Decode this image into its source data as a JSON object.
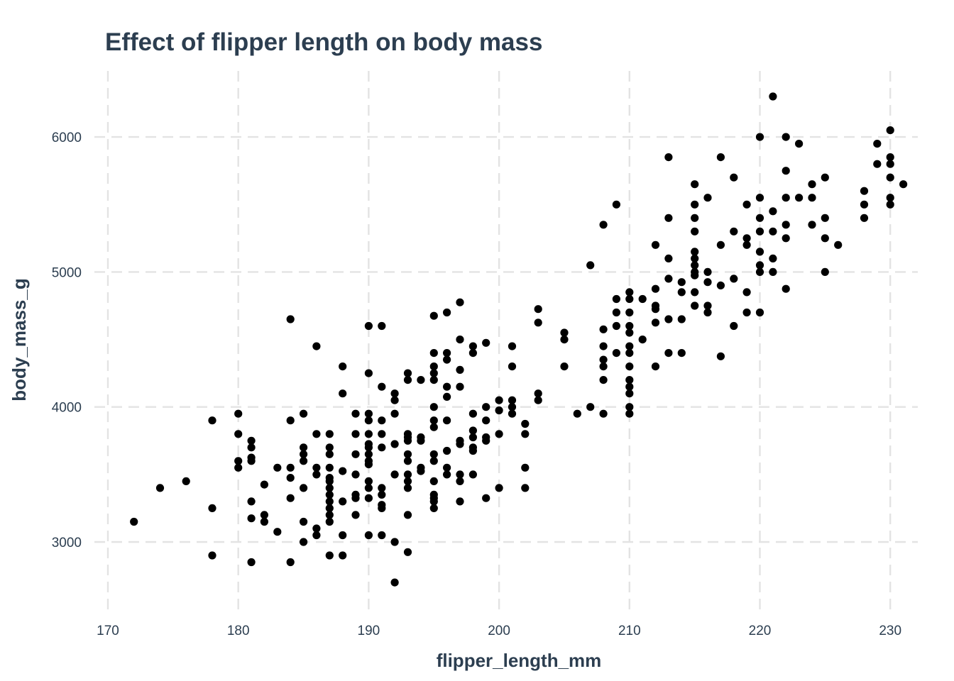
{
  "chart_data": {
    "type": "scatter",
    "title": "Effect of flipper length on body mass",
    "xlabel": "flipper_length_mm",
    "ylabel": "body_mass_g",
    "xlim": [
      169,
      232
    ],
    "ylim": [
      2550,
      6550
    ],
    "x_ticks": [
      170,
      180,
      190,
      200,
      210,
      220,
      230
    ],
    "y_ticks": [
      3000,
      4000,
      5000,
      6000
    ],
    "grid": true,
    "grid_style": "dashed",
    "legend": "none",
    "colors": {
      "point": "#000000",
      "text": "#2c3e50",
      "tick_text": "#2c3e50",
      "grid": "#e3e3e3"
    },
    "points": [
      [
        172,
        3150
      ],
      [
        174,
        3400
      ],
      [
        176,
        3450
      ],
      [
        178,
        3900
      ],
      [
        178,
        3250
      ],
      [
        178,
        2900
      ],
      [
        180,
        3950
      ],
      [
        180,
        3800
      ],
      [
        180,
        3600
      ],
      [
        180,
        3550
      ],
      [
        181,
        3750
      ],
      [
        181,
        3700
      ],
      [
        181,
        3625
      ],
      [
        181,
        3600
      ],
      [
        181,
        3300
      ],
      [
        181,
        3175
      ],
      [
        181,
        2850
      ],
      [
        182,
        3425
      ],
      [
        182,
        3200
      ],
      [
        182,
        3150
      ],
      [
        183,
        3550
      ],
      [
        183,
        3075
      ],
      [
        184,
        4650
      ],
      [
        184,
        3900
      ],
      [
        184,
        3550
      ],
      [
        184,
        3475
      ],
      [
        184,
        3325
      ],
      [
        184,
        2850
      ],
      [
        185,
        3950
      ],
      [
        185,
        3700
      ],
      [
        185,
        3650
      ],
      [
        185,
        3600
      ],
      [
        185,
        3400
      ],
      [
        185,
        3150
      ],
      [
        185,
        3000
      ],
      [
        186,
        4450
      ],
      [
        186,
        3800
      ],
      [
        186,
        3550
      ],
      [
        186,
        3500
      ],
      [
        186,
        3100
      ],
      [
        186,
        3050
      ],
      [
        187,
        3800
      ],
      [
        187,
        3700
      ],
      [
        187,
        3650
      ],
      [
        187,
        3550
      ],
      [
        187,
        3475
      ],
      [
        187,
        3450
      ],
      [
        187,
        3400
      ],
      [
        187,
        3350
      ],
      [
        187,
        3300
      ],
      [
        187,
        3250
      ],
      [
        187,
        3200
      ],
      [
        187,
        3150
      ],
      [
        187,
        2900
      ],
      [
        188,
        4300
      ],
      [
        188,
        4100
      ],
      [
        188,
        3525
      ],
      [
        188,
        3300
      ],
      [
        188,
        3050
      ],
      [
        188,
        2900
      ],
      [
        189,
        3950
      ],
      [
        189,
        3800
      ],
      [
        189,
        3650
      ],
      [
        189,
        3500
      ],
      [
        189,
        3350
      ],
      [
        189,
        3325
      ],
      [
        189,
        3200
      ],
      [
        190,
        4600
      ],
      [
        190,
        4250
      ],
      [
        190,
        3950
      ],
      [
        190,
        3900
      ],
      [
        190,
        3800
      ],
      [
        190,
        3725
      ],
      [
        190,
        3700
      ],
      [
        190,
        3650
      ],
      [
        190,
        3600
      ],
      [
        190,
        3575
      ],
      [
        190,
        3450
      ],
      [
        190,
        3400
      ],
      [
        190,
        3325
      ],
      [
        190,
        3050
      ],
      [
        191,
        4600
      ],
      [
        191,
        4150
      ],
      [
        191,
        3900
      ],
      [
        191,
        3800
      ],
      [
        191,
        3700
      ],
      [
        191,
        3400
      ],
      [
        191,
        3350
      ],
      [
        191,
        3275
      ],
      [
        191,
        3250
      ],
      [
        191,
        3050
      ],
      [
        192,
        4100
      ],
      [
        192,
        4050
      ],
      [
        192,
        3950
      ],
      [
        192,
        3725
      ],
      [
        192,
        3500
      ],
      [
        192,
        3000
      ],
      [
        192,
        2700
      ],
      [
        193,
        4250
      ],
      [
        193,
        4200
      ],
      [
        193,
        3800
      ],
      [
        193,
        3775
      ],
      [
        193,
        3750
      ],
      [
        193,
        3650
      ],
      [
        193,
        3600
      ],
      [
        193,
        3500
      ],
      [
        193,
        3450
      ],
      [
        193,
        3400
      ],
      [
        193,
        3200
      ],
      [
        193,
        2925
      ],
      [
        194,
        4200
      ],
      [
        194,
        3775
      ],
      [
        194,
        3750
      ],
      [
        194,
        3550
      ],
      [
        194,
        3525
      ],
      [
        195,
        4675
      ],
      [
        195,
        4400
      ],
      [
        195,
        4300
      ],
      [
        195,
        4250
      ],
      [
        195,
        4200
      ],
      [
        195,
        4000
      ],
      [
        195,
        3900
      ],
      [
        195,
        3850
      ],
      [
        195,
        3650
      ],
      [
        195,
        3600
      ],
      [
        195,
        3450
      ],
      [
        195,
        3350
      ],
      [
        195,
        3325
      ],
      [
        195,
        3300
      ],
      [
        195,
        3250
      ],
      [
        196,
        4700
      ],
      [
        196,
        4400
      ],
      [
        196,
        4350
      ],
      [
        196,
        4150
      ],
      [
        196,
        4075
      ],
      [
        196,
        3900
      ],
      [
        196,
        3675
      ],
      [
        196,
        3550
      ],
      [
        196,
        3500
      ],
      [
        197,
        4775
      ],
      [
        197,
        4500
      ],
      [
        197,
        4275
      ],
      [
        197,
        4150
      ],
      [
        197,
        3750
      ],
      [
        197,
        3725
      ],
      [
        197,
        3500
      ],
      [
        197,
        3450
      ],
      [
        197,
        3300
      ],
      [
        198,
        4450
      ],
      [
        198,
        4400
      ],
      [
        198,
        3950
      ],
      [
        198,
        3825
      ],
      [
        198,
        3775
      ],
      [
        198,
        3700
      ],
      [
        198,
        3675
      ],
      [
        198,
        3500
      ],
      [
        199,
        4475
      ],
      [
        199,
        4000
      ],
      [
        199,
        3900
      ],
      [
        199,
        3775
      ],
      [
        199,
        3750
      ],
      [
        199,
        3325
      ],
      [
        200,
        4050
      ],
      [
        200,
        3975
      ],
      [
        200,
        3800
      ],
      [
        200,
        3400
      ],
      [
        201,
        4450
      ],
      [
        201,
        4300
      ],
      [
        201,
        4050
      ],
      [
        201,
        4000
      ],
      [
        201,
        3950
      ],
      [
        202,
        3875
      ],
      [
        202,
        3800
      ],
      [
        202,
        3550
      ],
      [
        202,
        3400
      ],
      [
        203,
        4725
      ],
      [
        203,
        4625
      ],
      [
        203,
        4100
      ],
      [
        203,
        4050
      ],
      [
        205,
        4550
      ],
      [
        205,
        4500
      ],
      [
        205,
        4300
      ],
      [
        206,
        3950
      ],
      [
        207,
        5050
      ],
      [
        207,
        4000
      ],
      [
        208,
        5350
      ],
      [
        208,
        4575
      ],
      [
        208,
        4450
      ],
      [
        208,
        4350
      ],
      [
        208,
        4300
      ],
      [
        208,
        4200
      ],
      [
        208,
        3950
      ],
      [
        209,
        5500
      ],
      [
        209,
        4800
      ],
      [
        209,
        4700
      ],
      [
        209,
        4600
      ],
      [
        209,
        4400
      ],
      [
        210,
        4850
      ],
      [
        210,
        4800
      ],
      [
        210,
        4700
      ],
      [
        210,
        4600
      ],
      [
        210,
        4550
      ],
      [
        210,
        4450
      ],
      [
        210,
        4400
      ],
      [
        210,
        4300
      ],
      [
        210,
        4200
      ],
      [
        210,
        4150
      ],
      [
        210,
        4100
      ],
      [
        210,
        4000
      ],
      [
        210,
        3950
      ],
      [
        211,
        4800
      ],
      [
        211,
        4500
      ],
      [
        212,
        5200
      ],
      [
        212,
        4875
      ],
      [
        212,
        4750
      ],
      [
        212,
        4725
      ],
      [
        212,
        4625
      ],
      [
        212,
        4300
      ],
      [
        213,
        5850
      ],
      [
        213,
        5400
      ],
      [
        213,
        5100
      ],
      [
        213,
        4950
      ],
      [
        213,
        4650
      ],
      [
        213,
        4400
      ],
      [
        214,
        4925
      ],
      [
        214,
        4850
      ],
      [
        214,
        4650
      ],
      [
        214,
        4400
      ],
      [
        215,
        5650
      ],
      [
        215,
        5500
      ],
      [
        215,
        5400
      ],
      [
        215,
        5300
      ],
      [
        215,
        5150
      ],
      [
        215,
        5100
      ],
      [
        215,
        5050
      ],
      [
        215,
        5000
      ],
      [
        215,
        4975
      ],
      [
        215,
        4850
      ],
      [
        215,
        4750
      ],
      [
        216,
        5550
      ],
      [
        216,
        5000
      ],
      [
        216,
        4925
      ],
      [
        216,
        4750
      ],
      [
        216,
        4700
      ],
      [
        217,
        5850
      ],
      [
        217,
        5200
      ],
      [
        217,
        4900
      ],
      [
        217,
        4375
      ],
      [
        218,
        5700
      ],
      [
        218,
        5300
      ],
      [
        218,
        4950
      ],
      [
        218,
        4600
      ],
      [
        219,
        5500
      ],
      [
        219,
        5250
      ],
      [
        219,
        5200
      ],
      [
        219,
        4850
      ],
      [
        219,
        4700
      ],
      [
        220,
        6000
      ],
      [
        220,
        5550
      ],
      [
        220,
        5400
      ],
      [
        220,
        5300
      ],
      [
        220,
        5150
      ],
      [
        220,
        5050
      ],
      [
        220,
        5000
      ],
      [
        220,
        4700
      ],
      [
        221,
        6300
      ],
      [
        221,
        5450
      ],
      [
        221,
        5300
      ],
      [
        221,
        5100
      ],
      [
        221,
        5000
      ],
      [
        222,
        6000
      ],
      [
        222,
        5750
      ],
      [
        222,
        5550
      ],
      [
        222,
        5350
      ],
      [
        222,
        5250
      ],
      [
        222,
        4875
      ],
      [
        223,
        5950
      ],
      [
        223,
        5550
      ],
      [
        224,
        5650
      ],
      [
        224,
        5550
      ],
      [
        224,
        5350
      ],
      [
        225,
        5700
      ],
      [
        225,
        5400
      ],
      [
        225,
        5250
      ],
      [
        225,
        5000
      ],
      [
        226,
        5200
      ],
      [
        228,
        5600
      ],
      [
        228,
        5500
      ],
      [
        228,
        5400
      ],
      [
        229,
        5950
      ],
      [
        229,
        5800
      ],
      [
        230,
        6050
      ],
      [
        230,
        5850
      ],
      [
        230,
        5800
      ],
      [
        230,
        5700
      ],
      [
        230,
        5550
      ],
      [
        230,
        5500
      ],
      [
        231,
        5650
      ]
    ]
  }
}
